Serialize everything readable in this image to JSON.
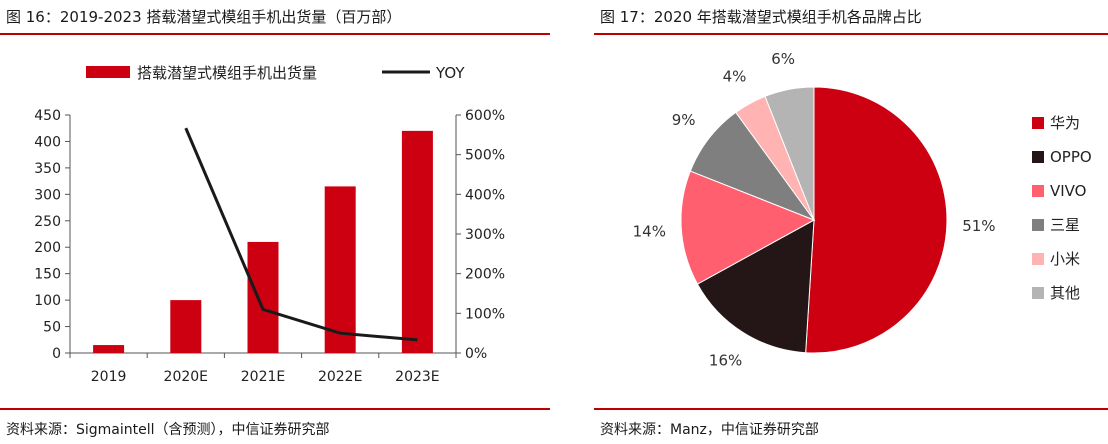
{
  "left": {
    "title": "图 16：2019-2023 搭载潜望式模组手机出货量（百万部）",
    "source": "资料来源：Sigmaintell（含预测），中信证券研究部"
  },
  "right": {
    "title": "图 17：2020 年搭载潜望式模组手机各品牌占比",
    "source": "资料来源：Manz，中信证券研究部"
  },
  "colors": {
    "accent": "#c00000",
    "bar": "#cc0011",
    "line": "#1a1a1a"
  },
  "chart_data": [
    {
      "type": "bar",
      "categories": [
        "2019",
        "2020E",
        "2021E",
        "2022E",
        "2023E"
      ],
      "series": [
        {
          "name": "搭载潜望式模组手机出货量",
          "type": "bar",
          "axis": "left",
          "values": [
            15,
            100,
            210,
            315,
            420
          ]
        },
        {
          "name": "YOY",
          "type": "line",
          "axis": "right",
          "values": [
            null,
            5.67,
            1.1,
            0.5,
            0.33
          ]
        }
      ],
      "y_left": {
        "min": 0,
        "max": 450,
        "ticks": [
          "0",
          "50",
          "100",
          "150",
          "200",
          "250",
          "300",
          "350",
          "400",
          "450"
        ]
      },
      "y_right": {
        "min": 0,
        "max": 6,
        "ticks": [
          "0%",
          "100%",
          "200%",
          "300%",
          "400%",
          "500%",
          "600%"
        ]
      },
      "legend": "top",
      "grid": false
    },
    {
      "type": "pie",
      "labels": [
        "华为",
        "OPPO",
        "VIVO",
        "三星",
        "小米",
        "其他"
      ],
      "values": [
        51,
        16,
        14,
        9,
        4,
        6
      ],
      "value_labels": [
        "51%",
        "16%",
        "14%",
        "9%",
        "4%",
        "6%"
      ],
      "colors": [
        "#cc0011",
        "#241616",
        "#ff5f6e",
        "#7f7f7f",
        "#ffb3b3",
        "#b4b4b4"
      ],
      "legend": "right"
    }
  ]
}
